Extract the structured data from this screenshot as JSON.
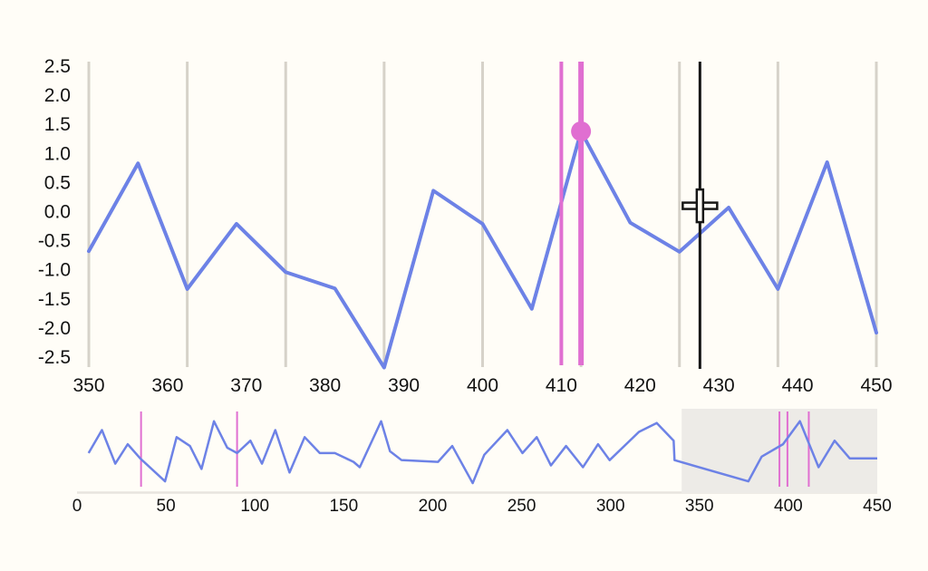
{
  "app": {
    "background": "#fffdf7"
  },
  "colors": {
    "series_blue": "#6d82e6",
    "event_pink": "#e06fd1",
    "gridline_gray": "#d6d2c9",
    "cursor_black": "#161616",
    "crosshair_fill": "#fffdf7",
    "window_shade": "#edebe7",
    "overview_axis": "#e8e5df",
    "tick_text": "#121212"
  },
  "chart_data": [
    {
      "id": "main",
      "type": "line",
      "title": "",
      "xlabel": "",
      "ylabel": "",
      "xlim": [
        350,
        450
      ],
      "ylim": [
        -2.5,
        2.5
      ],
      "grid": "vertical-only",
      "x": [
        350,
        356.25,
        362.5,
        368.75,
        375,
        381.25,
        387.5,
        393.75,
        400,
        406.25,
        412.5,
        418.75,
        425,
        431.25,
        437.5,
        443.75,
        450
      ],
      "values": [
        -0.68,
        0.83,
        -1.33,
        -0.21,
        -1.04,
        -1.32,
        -2.68,
        0.36,
        -0.21,
        -1.67,
        1.38,
        -0.19,
        -0.69,
        0.07,
        -1.33,
        0.85,
        -2.08
      ],
      "x_tick_values": [
        350,
        360,
        370,
        380,
        390,
        400,
        410,
        420,
        430,
        440,
        450
      ],
      "x_tick_labels": [
        "350",
        "360",
        "370",
        "380",
        "390",
        "400",
        "410",
        "420",
        "430",
        "440",
        "450"
      ],
      "y_tick_values": [
        2.5,
        2.0,
        1.5,
        1.0,
        0.5,
        0.0,
        -0.5,
        -1.0,
        -1.5,
        -2.0,
        -2.5
      ],
      "y_tick_labels": [
        "2.5",
        "2.0",
        "1.5",
        "1.0",
        "0.5",
        "0.0",
        "-0.5",
        "-1.0",
        "-1.5",
        "-2.0",
        "-2.5"
      ],
      "gridline_x_values": [
        350,
        362.5,
        375,
        387.5,
        400,
        412.5,
        425,
        437.5,
        450
      ],
      "event_lines": [
        {
          "x": 410,
          "width": 4
        },
        {
          "x": 412.5,
          "width": 6
        }
      ],
      "selected_point": {
        "x": 412.5,
        "y": 1.38
      },
      "cursor": {
        "x": 427.6,
        "y": 0.1
      }
    },
    {
      "id": "overview",
      "type": "line",
      "title": "",
      "xlabel": "",
      "ylabel": "",
      "xlim": [
        0,
        450
      ],
      "ylim": [
        -2.6,
        1.5
      ],
      "x_tick_values": [
        0,
        50,
        100,
        150,
        200,
        250,
        300,
        350,
        400,
        450
      ],
      "x_tick_labels": [
        "0",
        "50",
        "100",
        "150",
        "200",
        "250",
        "300",
        "350",
        "400",
        "450"
      ],
      "event_x_values": [
        36,
        90,
        395,
        399.5,
        411.5
      ],
      "window": {
        "start": 340,
        "end": 450
      },
      "points": [
        [
          6.5,
          -0.8
        ],
        [
          14,
          0.5
        ],
        [
          21.5,
          -1.4
        ],
        [
          28.5,
          -0.3
        ],
        [
          35.5,
          -1.1
        ],
        [
          49.5,
          -2.4
        ],
        [
          56,
          0.1
        ],
        [
          63.5,
          -0.4
        ],
        [
          70,
          -1.7
        ],
        [
          77,
          1.0
        ],
        [
          84.5,
          -0.5
        ],
        [
          90,
          -0.8
        ],
        [
          97.5,
          -0.1
        ],
        [
          104,
          -1.4
        ],
        [
          111.5,
          0.5
        ],
        [
          119.5,
          -1.9
        ],
        [
          128,
          0.1
        ],
        [
          136.5,
          -0.8
        ],
        [
          145,
          -0.8
        ],
        [
          155.5,
          -1.3
        ],
        [
          159,
          -1.6
        ],
        [
          171,
          1.0
        ],
        [
          176,
          -0.7
        ],
        [
          182.5,
          -1.2
        ],
        [
          203,
          -1.3
        ],
        [
          211,
          -0.4
        ],
        [
          222.5,
          -2.5
        ],
        [
          229,
          -0.9
        ],
        [
          242,
          0.5
        ],
        [
          250.5,
          -0.8
        ],
        [
          258.5,
          0.1
        ],
        [
          266.5,
          -1.5
        ],
        [
          275,
          -0.4
        ],
        [
          284.5,
          -1.6
        ],
        [
          293,
          -0.3
        ],
        [
          299.5,
          -1.2
        ],
        [
          316,
          0.4
        ],
        [
          326,
          0.9
        ],
        [
          335.5,
          -0.1
        ],
        [
          336,
          -1.2
        ],
        [
          377.5,
          -2.4
        ],
        [
          385,
          -1.0
        ],
        [
          397,
          -0.3
        ],
        [
          406.5,
          1.0
        ],
        [
          417,
          -1.6
        ],
        [
          426,
          -0.1
        ],
        [
          434.5,
          -1.1
        ],
        [
          450,
          -1.1
        ]
      ]
    }
  ]
}
